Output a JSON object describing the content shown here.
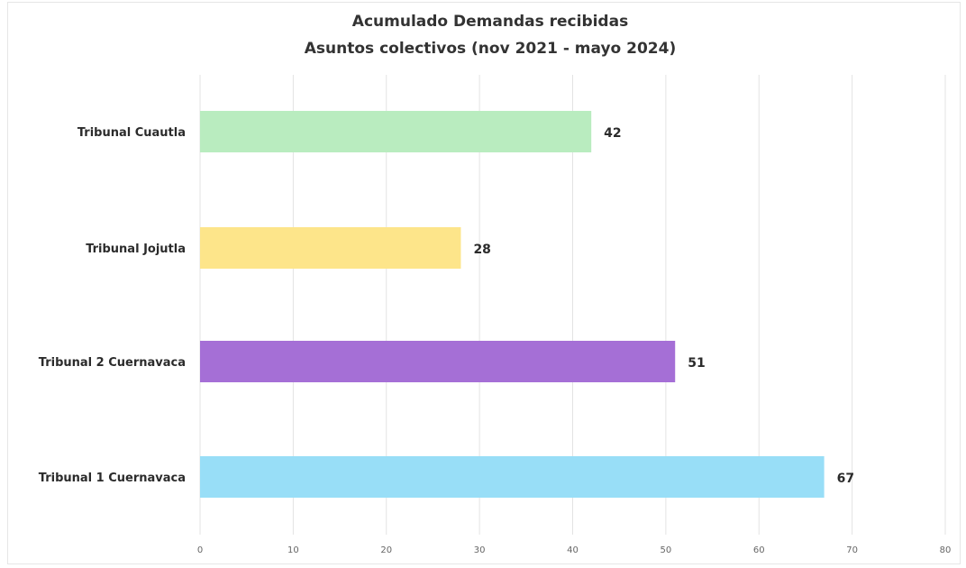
{
  "chart_data": {
    "type": "bar",
    "orientation": "horizontal",
    "title": "Acumulado Demandas recibidas",
    "subtitle": "Asuntos colectivos (nov 2021 - mayo 2024)",
    "categories": [
      "Tribunal Cuautla",
      "Tribunal Jojutla",
      "Tribunal 2 Cuernavaca",
      "Tribunal 1 Cuernavaca"
    ],
    "values": [
      42,
      28,
      51,
      67
    ],
    "value_labels": [
      "42",
      "28",
      "51",
      "67"
    ],
    "colors": [
      "#b9ecbf",
      "#fde58a",
      "#a56fd6",
      "#98def7"
    ],
    "xlim": [
      0,
      80
    ],
    "x_ticks": [
      "0",
      "10",
      "20",
      "30",
      "40",
      "50",
      "60",
      "70",
      "80"
    ],
    "grid": true,
    "legend": false
  }
}
